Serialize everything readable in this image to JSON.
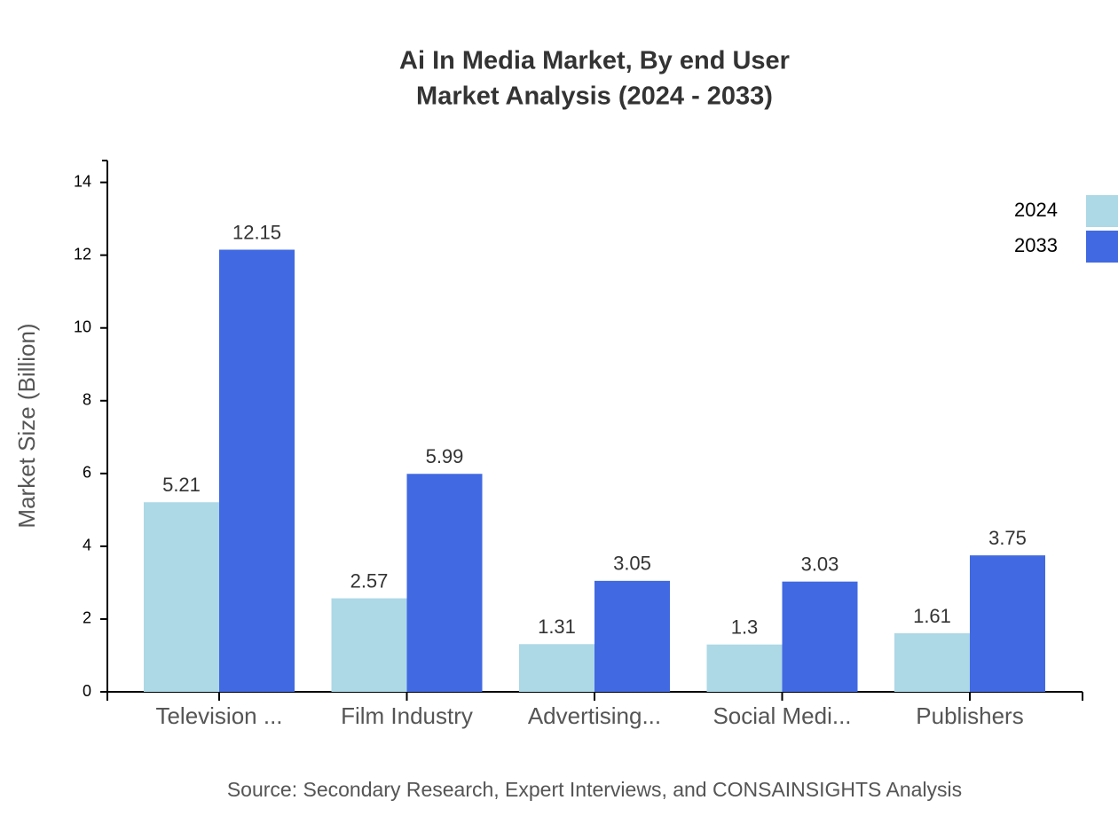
{
  "chart_data": {
    "type": "bar",
    "title": [
      "Ai In Media Market, By end User",
      "Market Analysis (2024 - 2033)"
    ],
    "y_label": "Market Size (Billion)",
    "source": "Source: Secondary Research, Expert Interviews, and CONSAINSIGHTS Analysis",
    "categories": [
      "Television ...",
      "Film Industry",
      "Advertising...",
      "Social Medi...",
      "Publishers"
    ],
    "series": [
      {
        "name": "2024",
        "color": "#add8e6",
        "values": [
          5.21,
          2.57,
          1.31,
          1.3,
          1.61
        ]
      },
      {
        "name": "2033",
        "color": "#4169e1",
        "values": [
          12.15,
          5.99,
          3.05,
          3.03,
          3.75
        ]
      }
    ],
    "ylim": [
      0,
      14.6
    ],
    "yticks": [
      0,
      2,
      4,
      6,
      8,
      10,
      12,
      14
    ],
    "legend": "top-right"
  }
}
